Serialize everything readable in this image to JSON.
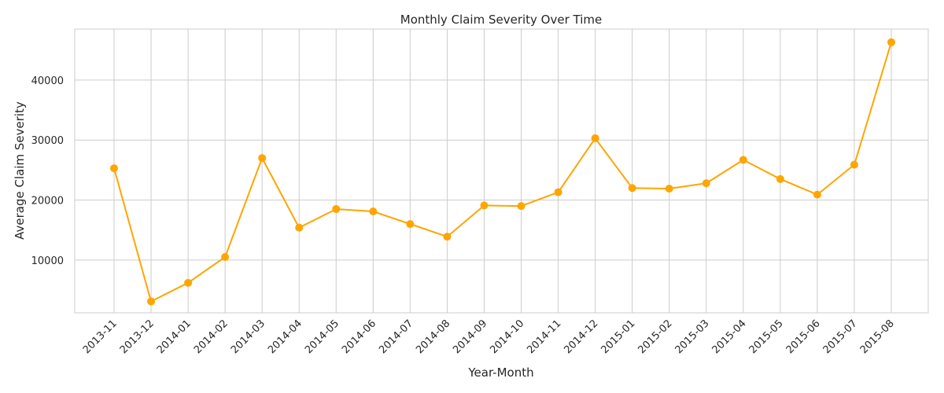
{
  "chart_data": {
    "type": "line",
    "title": "Monthly Claim Severity Over Time",
    "xlabel": "Year-Month",
    "ylabel": "Average Claim Severity",
    "categories": [
      "2013-11",
      "2013-12",
      "2014-01",
      "2014-02",
      "2014-03",
      "2014-04",
      "2014-05",
      "2014-06",
      "2014-07",
      "2014-08",
      "2014-09",
      "2014-10",
      "2014-11",
      "2014-12",
      "2015-01",
      "2015-02",
      "2015-03",
      "2015-04",
      "2015-05",
      "2015-06",
      "2015-07",
      "2015-08"
    ],
    "series": [
      {
        "values": [
          25300,
          3100,
          6200,
          10500,
          27000,
          15400,
          18500,
          18100,
          16000,
          13900,
          19100,
          19000,
          21300,
          30300,
          22000,
          21900,
          22800,
          26700,
          23500,
          20900,
          25900,
          46300
        ],
        "color": "#FFA500"
      }
    ],
    "ylim": [
      1200,
      48500
    ],
    "yticks": [
      "10000",
      "20000",
      "30000",
      "40000"
    ],
    "grid": true,
    "legend": "none"
  }
}
